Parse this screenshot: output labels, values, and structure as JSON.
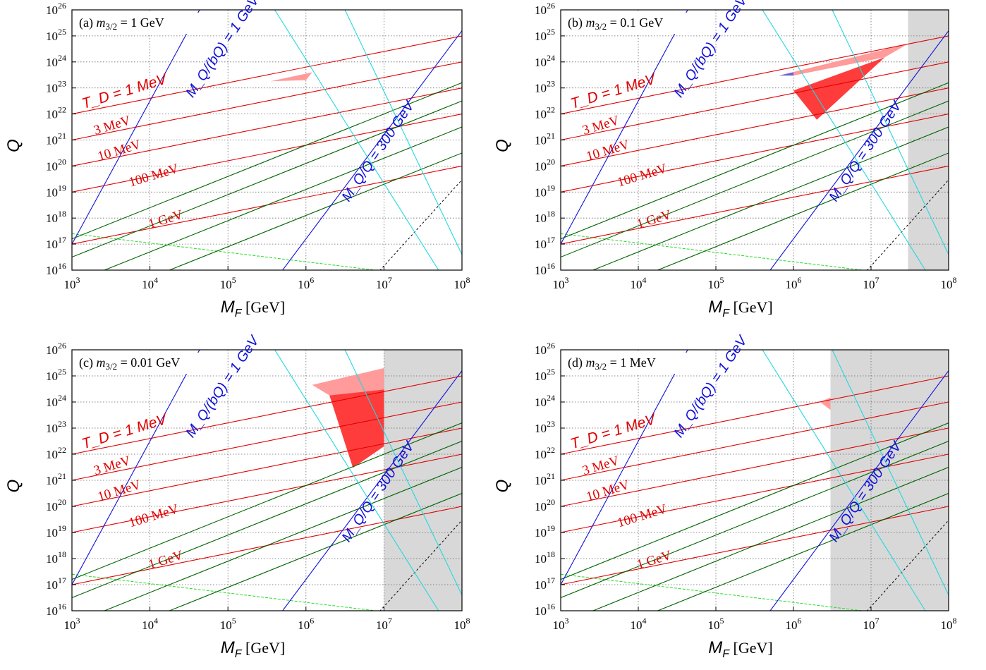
{
  "chart_data": [
    {
      "type": "line",
      "panel_label": "(a)",
      "title_text": "= 1 GeV",
      "xlabel": "M_F",
      "xunit": "[GeV]",
      "ylabel": "Q",
      "xlim": [
        1000,
        100000000
      ],
      "ylim": [
        1e+16,
        1e+26
      ],
      "xscale": "log",
      "yscale": "log",
      "grid": true,
      "shaded_region_x_from": null,
      "annotations": [
        "T_D = 1 MeV",
        "3 MeV",
        "10 MeV",
        "100 MeV",
        "1 GeV",
        "M_Q/(bQ) = 1 GeV",
        "M_Q/Q = 300 GeV"
      ],
      "td_lines": [
        {
          "label": "T_D = 1 MeV",
          "q_at_1e3": 1e+22
        },
        {
          "label": "3 MeV",
          "q_at_1e3": 1e+21
        },
        {
          "label": "10 MeV",
          "q_at_1e3": 1e+20
        },
        {
          "label": "100 MeV",
          "q_at_1e3": 1e+19
        },
        {
          "label": "1 GeV",
          "q_at_1e3": 1e+17
        }
      ],
      "regions": [
        {
          "color": "#ff9b9b",
          "points": [
            [
              350000,
              1.8e+23
            ],
            [
              1200000,
              4e+23
            ],
            [
              1000000,
              2e+23
            ]
          ]
        }
      ]
    },
    {
      "type": "line",
      "panel_label": "(b)",
      "title_text": "= 0.1 GeV",
      "xlabel": "M_F",
      "xunit": "[GeV]",
      "ylabel": "Q",
      "xlim": [
        1000,
        100000000
      ],
      "ylim": [
        1e+16,
        1e+26
      ],
      "xscale": "log",
      "yscale": "log",
      "grid": true,
      "shaded_region_x_from": 30000000,
      "annotations": [
        "T_D = 1 MeV",
        "3 MeV",
        "10 MeV",
        "100 MeV",
        "1 GeV",
        "M_Q/(bQ) = 1 GeV",
        "M_Q/Q = 300 GeV"
      ],
      "td_lines": [
        {
          "label": "T_D = 1 MeV",
          "q_at_1e3": 1e+22
        },
        {
          "label": "3 MeV",
          "q_at_1e3": 1e+21
        },
        {
          "label": "10 MeV",
          "q_at_1e3": 1e+20
        },
        {
          "label": "100 MeV",
          "q_at_1e3": 1e+19
        },
        {
          "label": "1 GeV",
          "q_at_1e3": 1e+17
        }
      ],
      "regions": [
        {
          "color": "#ff9b9b",
          "points": [
            [
              650000,
              3e+23
            ],
            [
              30000000,
              5e+24
            ],
            [
              15000000,
              1.5e+24
            ],
            [
              1000000,
              3e+23
            ]
          ]
        },
        {
          "color": "#ff3c3c",
          "points": [
            [
              1000000,
              8e+22
            ],
            [
              15000000,
              1.5e+24
            ],
            [
              2000000,
              6e+21
            ]
          ]
        },
        {
          "color": "#6464e0",
          "points": [
            [
              650000,
              3e+23
            ],
            [
              1000000,
              4e+23
            ],
            [
              1000000,
              3e+23
            ]
          ]
        }
      ]
    },
    {
      "type": "line",
      "panel_label": "(c)",
      "title_text": "= 0.01 GeV",
      "xlabel": "M_F",
      "xunit": "[GeV]",
      "ylabel": "Q",
      "xlim": [
        1000,
        100000000
      ],
      "ylim": [
        1e+16,
        1e+26
      ],
      "xscale": "log",
      "yscale": "log",
      "grid": true,
      "shaded_region_x_from": 10000000,
      "annotations": [
        "T_D = 1 MeV",
        "3 MeV",
        "10 MeV",
        "100 MeV",
        "1 GeV",
        "M_Q/(bQ) = 1 GeV",
        "M_Q/Q = 300 GeV"
      ],
      "td_lines": [
        {
          "label": "T_D = 1 MeV",
          "q_at_1e3": 1e+22
        },
        {
          "label": "3 MeV",
          "q_at_1e3": 1e+21
        },
        {
          "label": "10 MeV",
          "q_at_1e3": 1e+20
        },
        {
          "label": "100 MeV",
          "q_at_1e3": 1e+19
        },
        {
          "label": "1 GeV",
          "q_at_1e3": 1e+17
        }
      ],
      "regions": [
        {
          "color": "#ff9b9b",
          "points": [
            [
              1200000,
              4.5e+24
            ],
            [
              10000000,
              2e+25
            ],
            [
              10000000,
              3e+24
            ],
            [
              2000000,
              1.8e+24
            ]
          ]
        },
        {
          "color": "#ff3c3c",
          "points": [
            [
              2000000,
              1.8e+24
            ],
            [
              10000000,
              3e+24
            ],
            [
              10000000,
              2e+22
            ],
            [
              4000000,
              3e+21
            ]
          ]
        }
      ]
    },
    {
      "type": "line",
      "panel_label": "(d)",
      "title_text": "= 1 MeV",
      "xlabel": "M_F",
      "xunit": "[GeV]",
      "ylabel": "Q",
      "xlim": [
        1000,
        100000000
      ],
      "ylim": [
        1e+16,
        1e+26
      ],
      "xscale": "log",
      "yscale": "log",
      "grid": true,
      "shaded_region_x_from": 3000000,
      "annotations": [
        "T_D = 1 MeV",
        "3 MeV",
        "10 MeV",
        "100 MeV",
        "1 GeV",
        "M_Q/(bQ) = 1 GeV",
        "M_Q/Q = 300 GeV"
      ],
      "td_lines": [
        {
          "label": "T_D = 1 MeV",
          "q_at_1e3": 1e+22
        },
        {
          "label": "3 MeV",
          "q_at_1e3": 1e+21
        },
        {
          "label": "10 MeV",
          "q_at_1e3": 1e+20
        },
        {
          "label": "100 MeV",
          "q_at_1e3": 1e+19
        },
        {
          "label": "1 GeV",
          "q_at_1e3": 1e+17
        }
      ],
      "regions": [
        {
          "color": "#ff9b9b",
          "points": [
            [
              2200000,
              1e+24
            ],
            [
              3000000,
              1.5e+24
            ],
            [
              3000000,
              5e+23
            ]
          ]
        }
      ]
    }
  ],
  "colors": {
    "red_line": "#e00000",
    "green_line": "#006400",
    "blue_line": "#1010d8",
    "cyan_line": "#22d8e0",
    "lightgreen_dashed": "#22dd22",
    "gray_region": "#d8d8d8"
  }
}
